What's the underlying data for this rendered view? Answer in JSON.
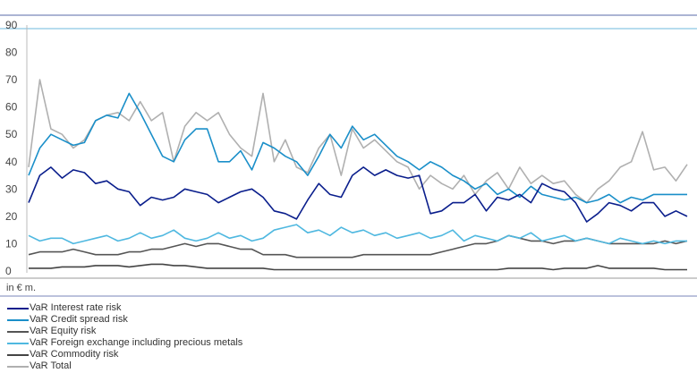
{
  "chart_data": {
    "type": "line",
    "title": "",
    "xlabel": "",
    "ylabel": "",
    "unit_label": "in € m.",
    "ylim": [
      0,
      90
    ],
    "yticks": [
      "0",
      "10",
      "20",
      "30",
      "40",
      "50",
      "60",
      "70",
      "80",
      "90"
    ],
    "grid": false,
    "legend_position": "bottom-left",
    "series": [
      {
        "name": "VaR Interest rate risk",
        "color": "#0a1e8c",
        "values": [
          25,
          35,
          38,
          34,
          37,
          36,
          32,
          33,
          30,
          29,
          24,
          27,
          26,
          27,
          30,
          29,
          28,
          25,
          27,
          29,
          30,
          27,
          22,
          21,
          19,
          26,
          32,
          28,
          27,
          35,
          38,
          35,
          37,
          35,
          34,
          35,
          21,
          22,
          25,
          25,
          28,
          22,
          27,
          26,
          28,
          25,
          32,
          30,
          29,
          25,
          18,
          21,
          25,
          24,
          22,
          25,
          25,
          20,
          22,
          20
        ]
      },
      {
        "name": "VaR Credit spread risk",
        "color": "#1a8fc9",
        "values": [
          35,
          45,
          50,
          48,
          46,
          47,
          55,
          57,
          56,
          65,
          58,
          50,
          42,
          40,
          48,
          52,
          52,
          40,
          40,
          44,
          37,
          47,
          45,
          42,
          40,
          35,
          42,
          50,
          45,
          53,
          48,
          50,
          46,
          42,
          40,
          37,
          40,
          38,
          35,
          33,
          30,
          32,
          28,
          30,
          27,
          31,
          28,
          27,
          26,
          27,
          25,
          26,
          28,
          25,
          27,
          26,
          28,
          28,
          28,
          28
        ]
      },
      {
        "name": "VaR Equity risk",
        "color": "#555555",
        "values": [
          6,
          7,
          7,
          7,
          8,
          7,
          6,
          6,
          6,
          7,
          7,
          8,
          8,
          9,
          10,
          9,
          10,
          10,
          9,
          8,
          8,
          6,
          6,
          6,
          5,
          5,
          5,
          5,
          5,
          5,
          6,
          6,
          6,
          6,
          6,
          6,
          6,
          7,
          8,
          9,
          10,
          10,
          11,
          13,
          12,
          11,
          11,
          10,
          11,
          11,
          12,
          11,
          10,
          10,
          10,
          10,
          10,
          11,
          10,
          11
        ]
      },
      {
        "name": "VaR Foreign exchange including precious metals",
        "color": "#4fb8e0",
        "values": [
          13,
          11,
          12,
          12,
          10,
          11,
          12,
          13,
          11,
          12,
          14,
          12,
          13,
          15,
          12,
          11,
          12,
          14,
          12,
          13,
          11,
          12,
          15,
          16,
          17,
          14,
          15,
          13,
          16,
          14,
          15,
          13,
          14,
          12,
          13,
          14,
          12,
          13,
          15,
          11,
          13,
          12,
          11,
          13,
          12,
          14,
          11,
          12,
          13,
          11,
          12,
          11,
          10,
          12,
          11,
          10,
          11,
          10,
          11,
          11
        ]
      },
      {
        "name": "VaR Commodity risk",
        "color": "#444444",
        "values": [
          1,
          1,
          1,
          1.5,
          1.5,
          1.5,
          2,
          2,
          2,
          1.5,
          2,
          2.5,
          2.5,
          2,
          2,
          1.5,
          1,
          1,
          1,
          1,
          1,
          1,
          0.5,
          0.5,
          0.5,
          0.5,
          0.5,
          0.5,
          0.5,
          0.5,
          0.5,
          0.5,
          0.5,
          0.5,
          0.5,
          0.5,
          0.5,
          0.5,
          0.5,
          0.5,
          0.5,
          0.5,
          0.5,
          1,
          1,
          1,
          1,
          0.5,
          1,
          1,
          1,
          2,
          1,
          1,
          1,
          1,
          1,
          0.5,
          0.5,
          0.5
        ]
      },
      {
        "name": "VaR Total",
        "color": "#b0b0b0",
        "values": [
          38,
          70,
          52,
          50,
          45,
          48,
          55,
          57,
          58,
          55,
          62,
          55,
          58,
          40,
          53,
          58,
          55,
          58,
          50,
          45,
          42,
          65,
          40,
          48,
          38,
          36,
          45,
          50,
          35,
          52,
          45,
          48,
          44,
          40,
          38,
          30,
          35,
          32,
          30,
          35,
          28,
          33,
          36,
          30,
          38,
          32,
          35,
          32,
          33,
          28,
          25,
          30,
          33,
          38,
          40,
          51,
          37,
          38,
          33,
          39
        ]
      }
    ]
  }
}
